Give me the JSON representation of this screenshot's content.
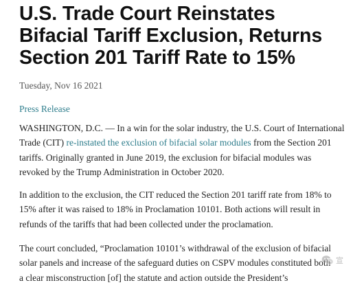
{
  "headline": {
    "line1": "U.S. Trade Court Reinstates",
    "line2": "Bifacial Tariff Exclusion, Returns",
    "line3": "Section 201 Tariff Rate to 15%"
  },
  "date": "Tuesday, Nov 16 2021",
  "category": "Press Release",
  "paragraph1": {
    "line1": "WASHINGTON, D.C. — In a win for the solar industry, the U.S. Court of International",
    "line2_pre": "Trade (CIT) ",
    "line2_link": "re-instated the exclusion of bifacial solar modules",
    "line2_post": " from the Section 201",
    "line3": "tariffs. Originally granted in June 2019, the exclusion for bifacial modules was",
    "line4": "revoked by the Trump Administration in October 2020."
  },
  "paragraph2": {
    "line1": "In addition to the exclusion, the CIT reduced the Section 201 tariff rate from 18% to",
    "line2": "15% after it was raised to 18% in Proclamation 10101. Both actions will result in",
    "line3": "refunds of the tariffs that had been collected under the proclamation."
  },
  "paragraph3": {
    "line1": "The court concluded, “Proclamation 10101’s withdrawal of the exclusion of bifacial",
    "line2": "solar panels and increase of the safeguard duties on CSPV modules constituted both",
    "line3": "a clear misconstruction [of] the statute and action outside the President’s"
  },
  "watermark": {
    "icon": "wechat-icon",
    "text": "宣"
  }
}
